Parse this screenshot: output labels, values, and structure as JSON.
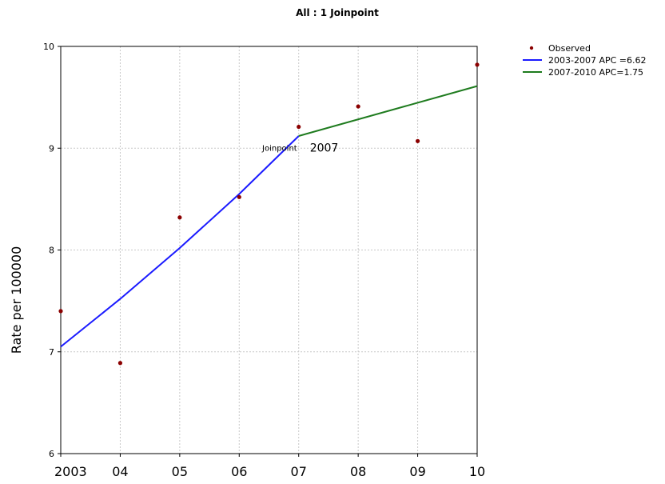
{
  "chart_data": {
    "type": "line",
    "title": "All : 1 Joinpoint",
    "ylabel": "Rate per 100000",
    "xlabel": "",
    "x_tick_labels": [
      "2003",
      "04",
      "05",
      "06",
      "07",
      "08",
      "09",
      "10"
    ],
    "x_ticks": [
      2003,
      2004,
      2005,
      2006,
      2007,
      2008,
      2009,
      2010
    ],
    "y_ticks": [
      6,
      7,
      8,
      9,
      10
    ],
    "y_tick_labels": [
      "6",
      "7",
      "8",
      "9",
      "10"
    ],
    "xlim": [
      2003,
      2010
    ],
    "ylim": [
      6,
      10
    ],
    "grid": true,
    "legend_position": "top-right outside",
    "observed": {
      "name": "Observed",
      "color": "#8b0000",
      "x": [
        2003,
        2004,
        2005,
        2006,
        2007,
        2008,
        2009,
        2010
      ],
      "y": [
        7.4,
        6.89,
        8.32,
        8.52,
        9.21,
        9.41,
        9.07,
        9.82
      ]
    },
    "series": [
      {
        "name": "2003-2007 APC =6.62",
        "color": "#1a1aff",
        "x": [
          2003,
          2004,
          2005,
          2006,
          2007
        ],
        "y": [
          7.05,
          7.52,
          8.02,
          8.55,
          9.12
        ]
      },
      {
        "name": "2007-2010 APC=1.75",
        "color": "#1e7b1e",
        "x": [
          2007,
          2010
        ],
        "y": [
          9.12,
          9.61
        ]
      }
    ],
    "annotations": [
      {
        "text": "Joinpoint",
        "x": 2007,
        "y": 9.0,
        "style": "small"
      },
      {
        "text": "2007",
        "x": 2007,
        "y": 9.0,
        "style": "big"
      }
    ]
  }
}
